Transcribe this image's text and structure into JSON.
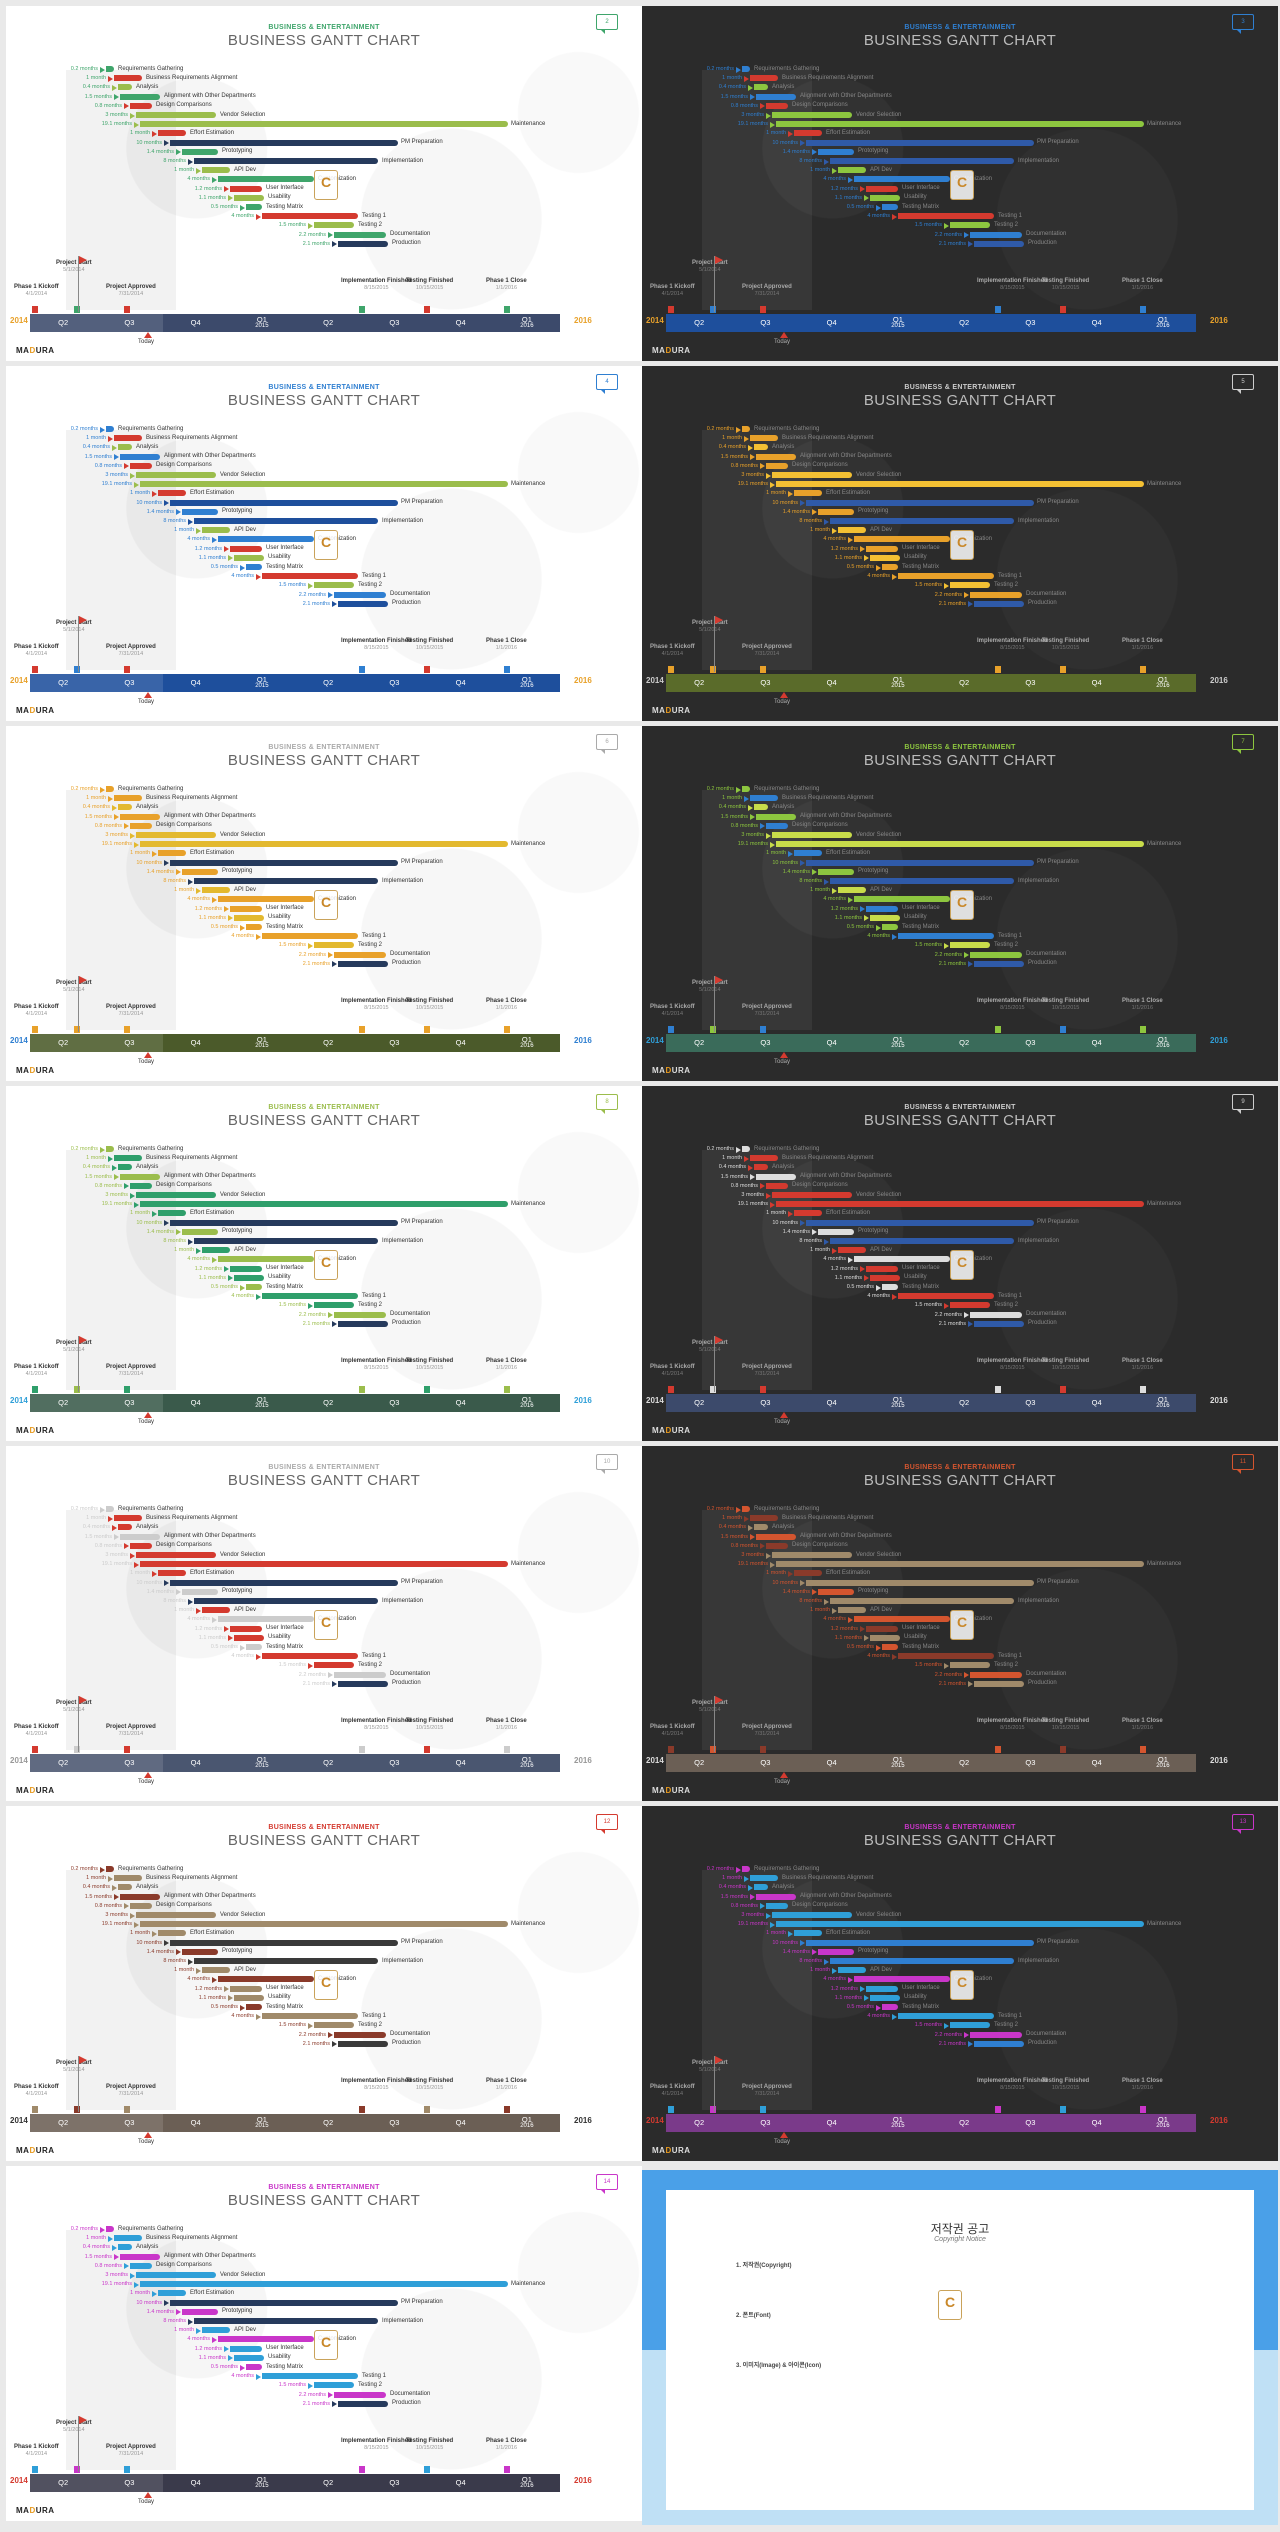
{
  "header": {
    "kicker": "BUSINESS & ENTERTAINMENT",
    "title": "BUSINESS GANTT CHART"
  },
  "brand": {
    "logo_a": "MA",
    "logo_b": "D",
    "logo_c": "URA"
  },
  "tasks": [
    {
      "dur": "0.2 months",
      "name": "Requirements Gathering",
      "start": 0.0,
      "len": 0.02
    },
    {
      "dur": "1 month",
      "name": "Business Requirements Alignment",
      "start": 0.02,
      "len": 0.07
    },
    {
      "dur": "0.4 months",
      "name": "Analysis",
      "start": 0.03,
      "len": 0.035
    },
    {
      "dur": "1.5 months",
      "name": "Alignment with Other Departments",
      "start": 0.035,
      "len": 0.1
    },
    {
      "dur": "0.8 months",
      "name": "Design Comparisons",
      "start": 0.06,
      "len": 0.055
    },
    {
      "dur": "3 months",
      "name": "Vendor Selection",
      "start": 0.075,
      "len": 0.2
    },
    {
      "dur": "19.1 months",
      "name": "Maintenance",
      "start": 0.085,
      "len": 0.92
    },
    {
      "dur": "1 month",
      "name": "Effort Estimation",
      "start": 0.13,
      "len": 0.07
    },
    {
      "dur": "10 months",
      "name": "PM Preparation",
      "start": 0.16,
      "len": 0.57
    },
    {
      "dur": "1.4 months",
      "name": "Prototyping",
      "start": 0.19,
      "len": 0.09
    },
    {
      "dur": "8 months",
      "name": "Implementation",
      "start": 0.22,
      "len": 0.46
    },
    {
      "dur": "1 month",
      "name": "API Dev",
      "start": 0.24,
      "len": 0.07
    },
    {
      "dur": "4 months",
      "name": "Customization",
      "start": 0.28,
      "len": 0.24
    },
    {
      "dur": "1.2 months",
      "name": "User Interface",
      "start": 0.31,
      "len": 0.08
    },
    {
      "dur": "1.1 months",
      "name": "Usability",
      "start": 0.32,
      "len": 0.075
    },
    {
      "dur": "0.5 months",
      "name": "Testing Matrix",
      "start": 0.35,
      "len": 0.04
    },
    {
      "dur": "4 months",
      "name": "Testing 1",
      "start": 0.39,
      "len": 0.24
    },
    {
      "dur": "1.5 months",
      "name": "Testing 2",
      "start": 0.52,
      "len": 0.1
    },
    {
      "dur": "2.2 months",
      "name": "Documentation",
      "start": 0.57,
      "len": 0.13
    },
    {
      "dur": "2.1 months",
      "name": "Production",
      "start": 0.58,
      "len": 0.125
    }
  ],
  "axis": {
    "quarters": [
      {
        "q": "Q2",
        "y": ""
      },
      {
        "q": "Q3",
        "y": ""
      },
      {
        "q": "Q4",
        "y": ""
      },
      {
        "q": "Q1",
        "y": "2015"
      },
      {
        "q": "Q2",
        "y": ""
      },
      {
        "q": "Q3",
        "y": ""
      },
      {
        "q": "Q4",
        "y": ""
      },
      {
        "q": "Q1",
        "y": "2016"
      }
    ],
    "year_start": "2014",
    "year_end": "2016",
    "today": "Today"
  },
  "milestones": [
    {
      "name": "Phase 1 Kickoff",
      "date": "4/1/2014"
    },
    {
      "name": "Project Start",
      "date": "5/1/2014"
    },
    {
      "name": "Project Approved",
      "date": "7/31/2014"
    },
    {
      "name": "Implementation Finished",
      "date": "8/15/2015"
    },
    {
      "name": "Testing Finished",
      "date": "10/15/2015"
    },
    {
      "name": "Phase 1 Close",
      "date": "1/1/2016"
    }
  ],
  "slides": [
    {
      "page": "2",
      "theme": "light",
      "c1": "#3fa56b",
      "c2": "#d43a2f",
      "c3": "#263a5c",
      "c4": "#9bbd4c",
      "bar": "#3c4a6b",
      "kicker_color": "#3fa56b",
      "year_color": "#e8a12a"
    },
    {
      "page": "3",
      "theme": "dark",
      "c1": "#2f7fd1",
      "c2": "#d43a2f",
      "c3": "#2f5aa8",
      "c4": "#8dc63f",
      "bar": "#1e4f9c",
      "kicker_color": "#2f7fd1",
      "year_color": "#e8a12a"
    },
    {
      "page": "4",
      "theme": "light",
      "c1": "#2f7fd1",
      "c2": "#d43a2f",
      "c3": "#1e4f9c",
      "c4": "#9bbd4c",
      "bar": "#1e4f9c",
      "kicker_color": "#2f7fd1",
      "year_color": "#e8a12a"
    },
    {
      "page": "5",
      "theme": "dark",
      "c1": "#e8a12a",
      "c2": "#e8a12a",
      "c3": "#2f5aa8",
      "c4": "#f3c033",
      "bar": "#5a6b2a",
      "kicker_color": "#cccccc",
      "year_color": "#cccccc"
    },
    {
      "page": "6",
      "theme": "light",
      "c1": "#e8a12a",
      "c2": "#e8a12a",
      "c3": "#263a5c",
      "c4": "#e3b92f",
      "bar": "#4b5a2a",
      "kicker_color": "#aaaaaa",
      "year_color": "#2f7fd1"
    },
    {
      "page": "7",
      "theme": "dark",
      "c1": "#8dc63f",
      "c2": "#2f7fd1",
      "c3": "#2f5aa8",
      "c4": "#c8dc4a",
      "bar": "#3a6b5a",
      "kicker_color": "#8dc63f",
      "year_color": "#2f9fd8"
    },
    {
      "page": "8",
      "theme": "light",
      "c1": "#9bbd4c",
      "c2": "#2f9f6b",
      "c3": "#263a5c",
      "c4": "#2f9f6b",
      "bar": "#3a5a4b",
      "kicker_color": "#9bbd4c",
      "year_color": "#2f9fd8"
    },
    {
      "page": "9",
      "theme": "dark",
      "c1": "#dddddd",
      "c2": "#d43a2f",
      "c3": "#2f5aa8",
      "c4": "#d43a2f",
      "bar": "#3c4a6b",
      "kicker_color": "#cccccc",
      "year_color": "#dddddd"
    },
    {
      "page": "10",
      "theme": "light",
      "c1": "#cccccc",
      "c2": "#d43a2f",
      "c3": "#263a5c",
      "c4": "#d43a2f",
      "bar": "#4a5670",
      "kicker_color": "#aaaaaa",
      "year_color": "#999999"
    },
    {
      "page": "11",
      "theme": "dark",
      "c1": "#d4552f",
      "c2": "#8a3a2a",
      "c3": "#a08a6a",
      "c4": "#a08a6a",
      "bar": "#6b5f55",
      "kicker_color": "#d4552f",
      "year_color": "#dddddd"
    },
    {
      "page": "12",
      "theme": "light",
      "c1": "#8a3a2a",
      "c2": "#a08a6a",
      "c3": "#3a3a3a",
      "c4": "#a08a6a",
      "bar": "#6b5f55",
      "kicker_color": "#d43a2f",
      "year_color": "#333333"
    },
    {
      "page": "13",
      "theme": "dark",
      "c1": "#c936c9",
      "c2": "#2f9fd8",
      "c3": "#2f7fd1",
      "c4": "#2f9fd8",
      "bar": "#7a3a8a",
      "kicker_color": "#c936c9",
      "year_color": "#d43a2f"
    },
    {
      "page": "14",
      "theme": "light",
      "c1": "#c936c9",
      "c2": "#2f9fd8",
      "c3": "#263a5c",
      "c4": "#2f9fd8",
      "bar": "#3a3a4b",
      "kicker_color": "#c936c9",
      "year_color": "#d43a2f"
    }
  ],
  "copyright": {
    "title": "저작권 공고",
    "subtitle": "Copyright Notice",
    "p1": "",
    "s1_title": "1. 저작권(Copyright)",
    "s2_title": "2. 폰트(Font)",
    "s3_title": "3. 이미지(Image) & 아이콘(Icon)"
  }
}
